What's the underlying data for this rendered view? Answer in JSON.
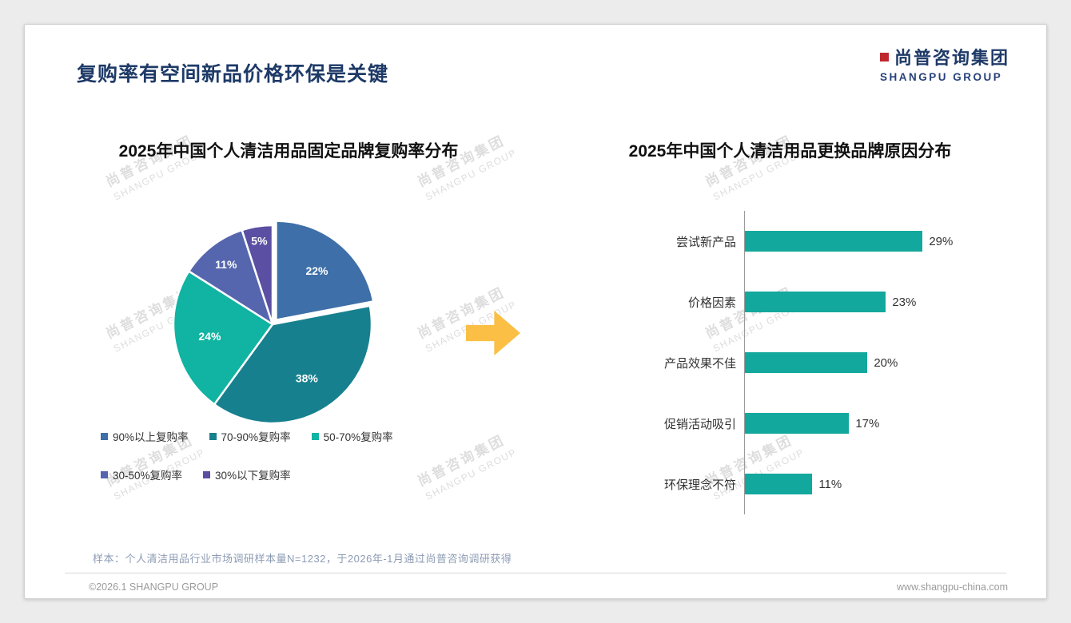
{
  "slide": {
    "title": "复购率有空间新品价格环保是关键",
    "logo": {
      "cn": "尚普咨询集团",
      "en": "SHANGPU GROUP"
    },
    "watermark": {
      "cn": "尚普咨询集团",
      "en": "SHANGPU GROUP"
    },
    "sample_note": "样本：个人清洁用品行业市场调研样本量N=1232，于2026年-1月通过尚普咨询调研获得",
    "footer": {
      "left": "©2026.1 SHANGPU GROUP",
      "right": "www.shangpu-china.com"
    }
  },
  "chart_data": [
    {
      "type": "pie",
      "title": "2025年中国个人清洁用品固定品牌复购率分布",
      "labels": [
        "90%以上复购率",
        "70-90%复购率",
        "50-70%复购率",
        "30-50%复购率",
        "30%以下复购率"
      ],
      "values": [
        22,
        38,
        24,
        11,
        5
      ],
      "value_suffix": "%",
      "colors": [
        "#3e6fa8",
        "#17808e",
        "#11b3a2",
        "#5566ae",
        "#5a4fa2"
      ],
      "start_angle_deg": 0,
      "direction": "clockwise",
      "legend_position": "bottom"
    },
    {
      "type": "bar",
      "orientation": "horizontal",
      "title": "2025年中国个人清洁用品更换品牌原因分布",
      "categories": [
        "尝试新产品",
        "价格因素",
        "产品效果不佳",
        "促销活动吸引",
        "环保理念不符"
      ],
      "values": [
        29,
        23,
        20,
        17,
        11
      ],
      "value_suffix": "%",
      "bar_color": "#13a89d",
      "xlim": [
        0,
        30
      ],
      "grid": false,
      "legend": false
    }
  ],
  "colors": {
    "title_navy": "#1e3a67",
    "arrow_yellow": "#fbbf45",
    "logo_red": "#c0272d"
  }
}
